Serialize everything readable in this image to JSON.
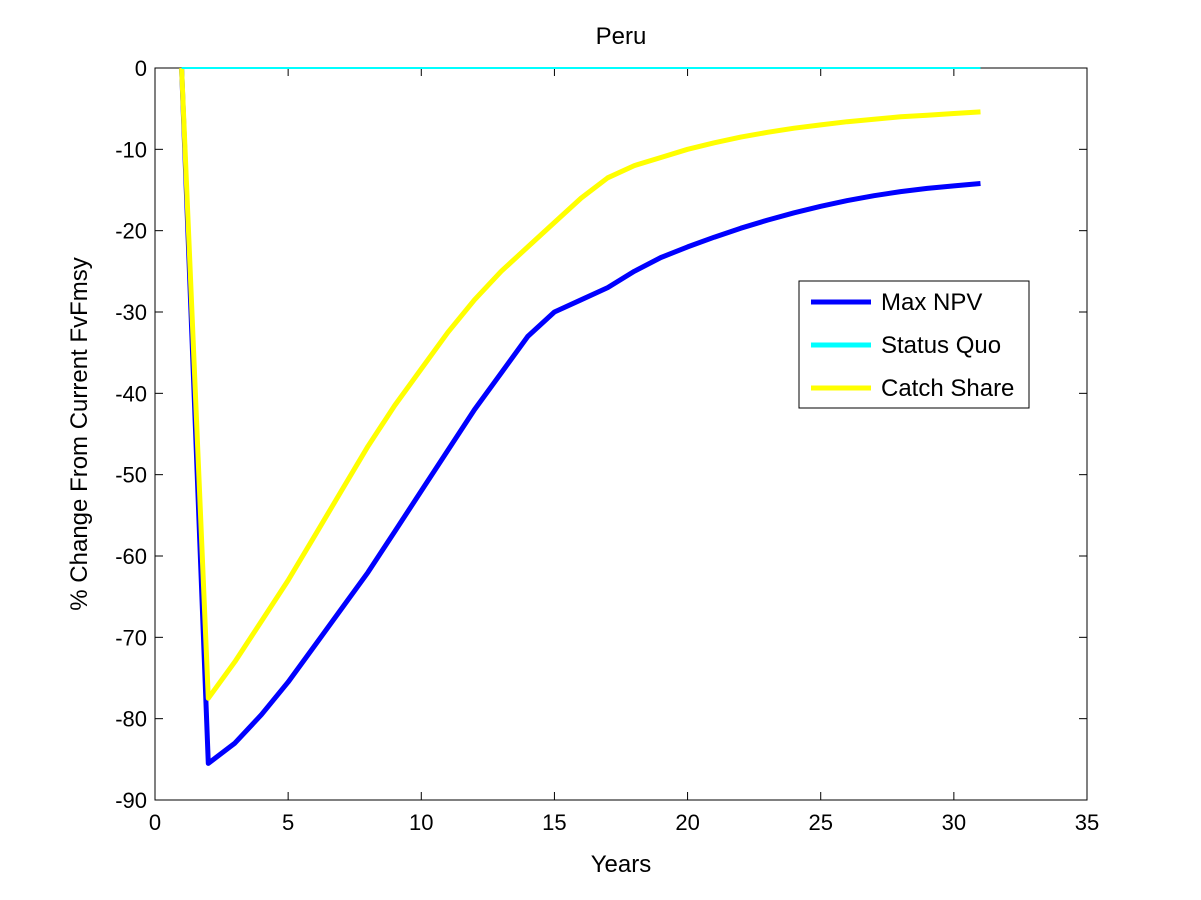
{
  "chart_data": {
    "type": "line",
    "title": "Peru",
    "xlabel": "Years",
    "ylabel": "% Change From Current FvFmsy",
    "xlim": [
      0,
      35
    ],
    "ylim": [
      -90,
      0
    ],
    "xticks": [
      0,
      5,
      10,
      15,
      20,
      25,
      30,
      35
    ],
    "yticks": [
      0,
      -10,
      -20,
      -30,
      -40,
      -50,
      -60,
      -70,
      -80,
      -90
    ],
    "grid": false,
    "legend_position": "right",
    "series": [
      {
        "name": "Max NPV",
        "color": "#0000ff",
        "x": [
          1,
          2,
          3,
          4,
          5,
          6,
          7,
          8,
          9,
          10,
          11,
          12,
          13,
          14,
          15,
          16,
          17,
          18,
          19,
          20,
          21,
          22,
          23,
          24,
          25,
          26,
          27,
          28,
          29,
          30,
          31
        ],
        "y": [
          0,
          -85.5,
          -83,
          -79.5,
          -75.5,
          -71,
          -66.5,
          -62,
          -57,
          -52,
          -47,
          -42,
          -37.5,
          -33,
          -30,
          -28.5,
          -27,
          -25,
          -23.3,
          -22,
          -20.8,
          -19.7,
          -18.7,
          -17.8,
          -17,
          -16.3,
          -15.7,
          -15.2,
          -14.8,
          -14.5,
          -14.2
        ]
      },
      {
        "name": "Status Quo",
        "color": "#00ffff",
        "x": [
          1,
          31
        ],
        "y": [
          0,
          0
        ]
      },
      {
        "name": "Catch Share",
        "color": "#ffff00",
        "x": [
          1,
          2,
          3,
          4,
          5,
          6,
          7,
          8,
          9,
          10,
          11,
          12,
          13,
          14,
          15,
          16,
          17,
          18,
          19,
          20,
          21,
          22,
          23,
          24,
          25,
          26,
          27,
          28,
          29,
          30,
          31
        ],
        "y": [
          0,
          -77.5,
          -73,
          -68,
          -63,
          -57.5,
          -52,
          -46.5,
          -41.5,
          -37,
          -32.5,
          -28.5,
          -25,
          -22,
          -19,
          -16,
          -13.5,
          -12,
          -11,
          -10,
          -9.2,
          -8.5,
          -7.9,
          -7.4,
          -7,
          -6.6,
          -6.3,
          -6,
          -5.8,
          -5.6,
          -5.4
        ]
      }
    ]
  }
}
